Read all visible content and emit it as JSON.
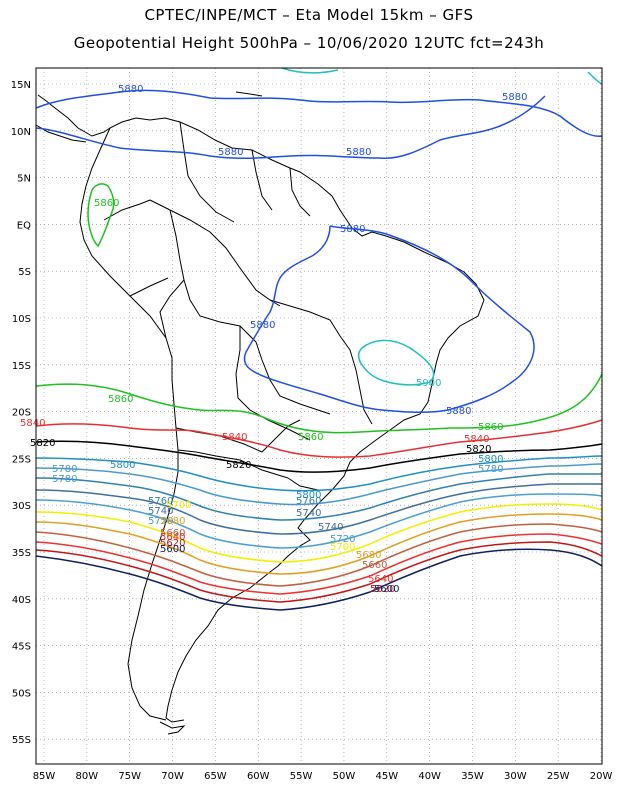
{
  "title": {
    "line1": "CPTEC/INPE/MCT  –   Eta Model 15km  –  GFS",
    "line2": "Geopotential Height 500hPa  –  10/06/2020 12UTC fct=243h"
  },
  "axes": {
    "lon_ticks": [
      "85W",
      "80W",
      "75W",
      "70W",
      "65W",
      "60W",
      "55W",
      "50W",
      "45W",
      "40W",
      "35W",
      "30W",
      "25W",
      "20W"
    ],
    "lat_ticks": [
      "15N",
      "10N",
      "5N",
      "EQ",
      "5S",
      "10S",
      "15S",
      "20S",
      "25S",
      "30S",
      "35S",
      "40S",
      "45S",
      "50S",
      "55S"
    ]
  },
  "colors": {
    "5900": "#20c0c0",
    "5880": "#2050e0",
    "5860": "#20c020",
    "5840": "#e83030",
    "5820": "#000000",
    "5800": "#2090c0",
    "5780": "#4a9ad0",
    "5760": "#3080b0",
    "5740": "#4070a0",
    "5720": "#4aa0d0",
    "5700": "#f0f000",
    "5680": "#e0a020",
    "5660": "#c06040",
    "5640": "#f03030",
    "5620": "#c01818",
    "5600": "#102060",
    "grid": "#888888",
    "coast": "#000000"
  },
  "contour_labels": [
    {
      "text": "5880",
      "color": "5880"
    },
    {
      "text": "5880",
      "color": "5880"
    },
    {
      "text": "5880",
      "color": "5880"
    },
    {
      "text": "5880",
      "color": "5880"
    },
    {
      "text": "5880",
      "color": "5880"
    },
    {
      "text": "5880",
      "color": "5880"
    },
    {
      "text": "5860",
      "color": "5860"
    },
    {
      "text": "5900",
      "color": "5900"
    },
    {
      "text": "5880",
      "color": "5880"
    },
    {
      "text": "5860",
      "color": "5860"
    },
    {
      "text": "5860",
      "color": "5860"
    },
    {
      "text": "5860",
      "color": "5860"
    },
    {
      "text": "5840",
      "color": "5840"
    },
    {
      "text": "5840",
      "color": "5840"
    },
    {
      "text": "5840",
      "color": "5840"
    },
    {
      "text": "5820",
      "color": "5820"
    },
    {
      "text": "5820",
      "color": "5820"
    },
    {
      "text": "5820",
      "color": "5820"
    },
    {
      "text": "5800",
      "color": "5800"
    },
    {
      "text": "5800",
      "color": "5800"
    },
    {
      "text": "5780",
      "color": "5780"
    },
    {
      "text": "5780",
      "color": "5780"
    },
    {
      "text": "5780",
      "color": "5780"
    },
    {
      "text": "5760",
      "color": "5760"
    },
    {
      "text": "5740",
      "color": "5740"
    },
    {
      "text": "5720",
      "color": "5720"
    },
    {
      "text": "5700",
      "color": "5700"
    },
    {
      "text": "5680",
      "color": "5680"
    },
    {
      "text": "5660",
      "color": "5660"
    },
    {
      "text": "5640",
      "color": "5640"
    },
    {
      "text": "5620",
      "color": "5620"
    },
    {
      "text": "5600",
      "color": "5600"
    },
    {
      "text": "5760",
      "color": "5760"
    },
    {
      "text": "5740",
      "color": "5740"
    },
    {
      "text": "5740",
      "color": "5740"
    },
    {
      "text": "5720",
      "color": "5720"
    },
    {
      "text": "5700",
      "color": "5700"
    },
    {
      "text": "5680",
      "color": "5680"
    },
    {
      "text": "5660",
      "color": "5660"
    },
    {
      "text": "5640",
      "color": "5640"
    },
    {
      "text": "5620",
      "color": "5620"
    },
    {
      "text": "5600",
      "color": "5600"
    },
    {
      "text": "5800",
      "color": "5800"
    }
  ]
}
